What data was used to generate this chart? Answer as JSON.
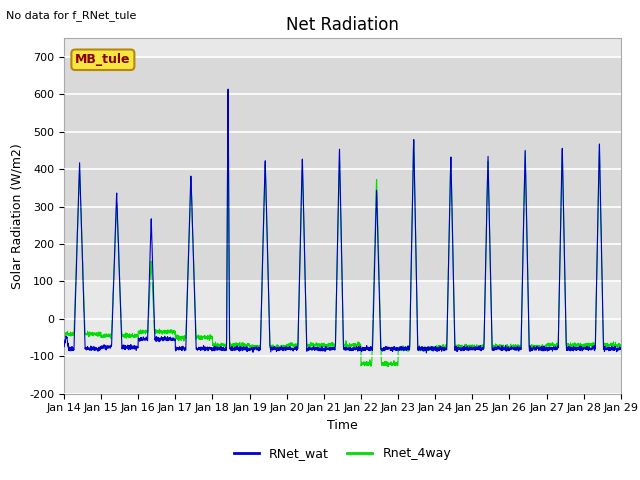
{
  "title": "Net Radiation",
  "xlabel": "Time",
  "ylabel": "Solar Radiation (W/m2)",
  "top_left_text": "No data for f_RNet_tule",
  "legend_box_text": "MB_tule",
  "legend_box_text_color": "#8b0000",
  "ylim": [
    -200,
    750
  ],
  "yticks": [
    -200,
    -100,
    0,
    100,
    200,
    300,
    400,
    500,
    600,
    700
  ],
  "xtick_labels": [
    "Jan 14",
    "Jan 15",
    "Jan 16",
    "Jan 17",
    "Jan 18",
    "Jan 19",
    "Jan 20",
    "Jan 21",
    "Jan 22",
    "Jan 23",
    "Jan 24",
    "Jan 25",
    "Jan 26",
    "Jan 27",
    "Jan 28",
    "Jan 29"
  ],
  "color_blue": "#0000cd",
  "color_green": "#00dd00",
  "legend_label_blue": "RNet_wat",
  "legend_label_green": "Rnet_4way",
  "background_color": "#e8e8e8",
  "plot_bg_color": "#d8d8d8",
  "grid_color": "#cccccc",
  "title_fontsize": 12,
  "label_fontsize": 9,
  "tick_fontsize": 8
}
